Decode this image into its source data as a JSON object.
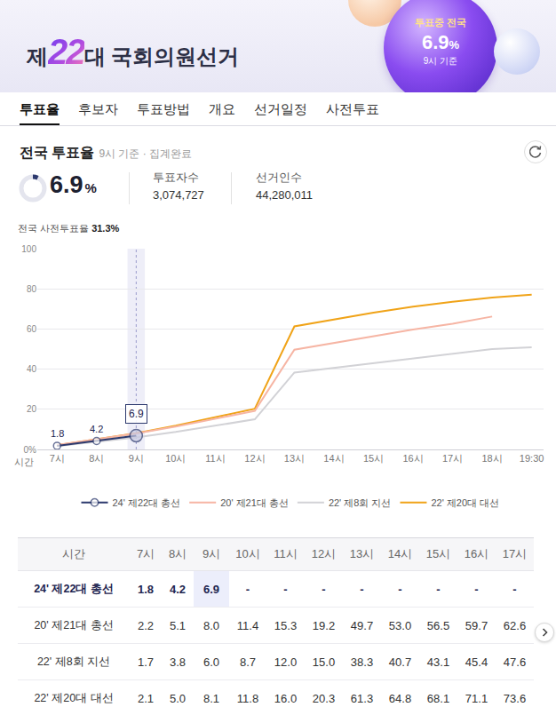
{
  "header": {
    "title_prefix": "제",
    "title_number": "22",
    "title_suffix": "대 국회의원선거",
    "badge_label": "투표중 전국",
    "badge_value": "6.9",
    "badge_unit": "%",
    "badge_note": "9시 기준"
  },
  "tabs": {
    "items": [
      "투표율",
      "후보자",
      "투표방법",
      "개요",
      "선거일정",
      "사전투표"
    ],
    "active": "투표율"
  },
  "summary": {
    "title": "전국 투표율",
    "note": "9시 기준 · 집계완료",
    "rate": 6.9,
    "rate_unit": "%",
    "voters_label": "투표자수",
    "voters": "3,074,727",
    "electorate_label": "선거인수",
    "electorate": "44,280,011",
    "early_label": "전국 사전투표율",
    "early_value": "31.3%"
  },
  "chart_data": {
    "type": "line",
    "xlabel": "시간",
    "categories": [
      "7시",
      "8시",
      "9시",
      "10시",
      "11시",
      "12시",
      "13시",
      "14시",
      "15시",
      "16시",
      "17시",
      "18시",
      "19:30"
    ],
    "ylim": [
      0,
      100
    ],
    "yticks": [
      {
        "value": 0,
        "label": "0%"
      },
      20,
      40,
      60,
      80,
      100
    ],
    "grid": true,
    "legend": "bottom",
    "series": [
      {
        "name": "24' 제22대 총선",
        "color": "#2d3a6e",
        "marker": "circle",
        "data_labels": true,
        "values": [
          1.8,
          4.2,
          6.9,
          null,
          null,
          null,
          null,
          null,
          null,
          null,
          null,
          null,
          null
        ]
      },
      {
        "name": "20' 제21대 총선",
        "color": "#f6b5a4",
        "values": [
          2.2,
          5.1,
          8.0,
          11.4,
          15.3,
          19.2,
          49.7,
          53.0,
          56.5,
          59.7,
          62.6,
          66.2,
          null
        ]
      },
      {
        "name": "22' 제8회 지선",
        "color": "#d2d2d6",
        "values": [
          1.7,
          3.8,
          6.0,
          8.7,
          12.0,
          15.0,
          38.3,
          40.7,
          43.1,
          45.4,
          47.6,
          50.0,
          50.9
        ]
      },
      {
        "name": "22' 제20대 대선",
        "color": "#f0a318",
        "values": [
          2.1,
          5.0,
          8.1,
          11.8,
          16.0,
          20.3,
          61.3,
          64.8,
          68.1,
          71.1,
          73.6,
          75.7,
          77.1
        ]
      }
    ]
  },
  "table": {
    "header": [
      "시간",
      "7시",
      "8시",
      "9시",
      "10시",
      "11시",
      "12시",
      "13시",
      "14시",
      "15시",
      "16시",
      "17시"
    ],
    "rows": [
      {
        "label": "24' 제22대 총선",
        "cells": [
          "1.8",
          "4.2",
          "6.9",
          "-",
          "-",
          "-",
          "-",
          "-",
          "-",
          "-",
          "-"
        ]
      },
      {
        "label": "20' 제21대 총선",
        "cells": [
          "2.2",
          "5.1",
          "8.0",
          "11.4",
          "15.3",
          "19.2",
          "49.7",
          "53.0",
          "56.5",
          "59.7",
          "62.6"
        ]
      },
      {
        "label": "22' 제8회 지선",
        "cells": [
          "1.7",
          "3.8",
          "6.0",
          "8.7",
          "12.0",
          "15.0",
          "38.3",
          "40.7",
          "43.1",
          "45.4",
          "47.6"
        ]
      },
      {
        "label": "22' 제20대 대선",
        "cells": [
          "2.1",
          "5.0",
          "8.1",
          "11.8",
          "16.0",
          "20.3",
          "61.3",
          "64.8",
          "68.1",
          "71.1",
          "73.6"
        ]
      }
    ]
  }
}
